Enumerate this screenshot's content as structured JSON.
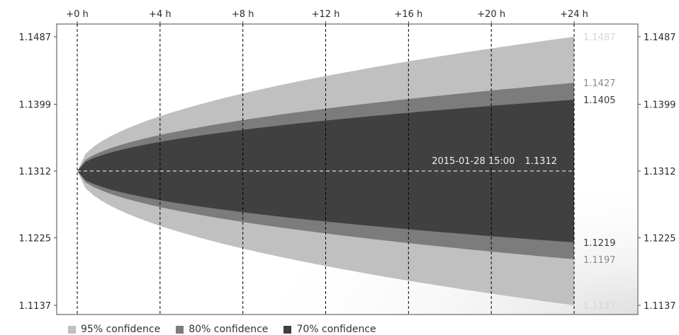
{
  "chart_data": {
    "type": "area",
    "title": "",
    "x_ticks": [
      "+0 h",
      "+4 h",
      "+8 h",
      "+12 h",
      "+16 h",
      "+20 h",
      "+24 h"
    ],
    "x_hours": [
      0,
      4,
      8,
      12,
      16,
      20,
      24
    ],
    "y_ticks": [
      "1.1487",
      "1.1399",
      "1.1312",
      "1.1225",
      "1.1137"
    ],
    "y_tick_values": [
      1.1487,
      1.1399,
      1.1312,
      1.1225,
      1.1137
    ],
    "ylim": [
      1.1137,
      1.1487
    ],
    "xlim": [
      0,
      24
    ],
    "center": {
      "label": "2015-01-28 15:00",
      "value": "1.1312",
      "y": 1.1312
    },
    "grid": "vertical dashed",
    "legend_placement": "bottom-left",
    "series": [
      {
        "name": "95% confidence",
        "color": "#c0c0c0",
        "upper": 1.1487,
        "lower": 1.1137,
        "upper_label": "1.1487",
        "lower_label": "1.1137",
        "label_color": "#d7d7d7"
      },
      {
        "name": "80% confidence",
        "color": "#7c7c7c",
        "upper": 1.1427,
        "lower": 1.1197,
        "upper_label": "1.1427",
        "lower_label": "1.1197",
        "label_color": "#8a8a8a"
      },
      {
        "name": "70% confidence",
        "color": "#404040",
        "upper": 1.1405,
        "lower": 1.1219,
        "upper_label": "1.1405",
        "lower_label": "1.1219",
        "label_color": "#3a3a3a"
      }
    ]
  }
}
